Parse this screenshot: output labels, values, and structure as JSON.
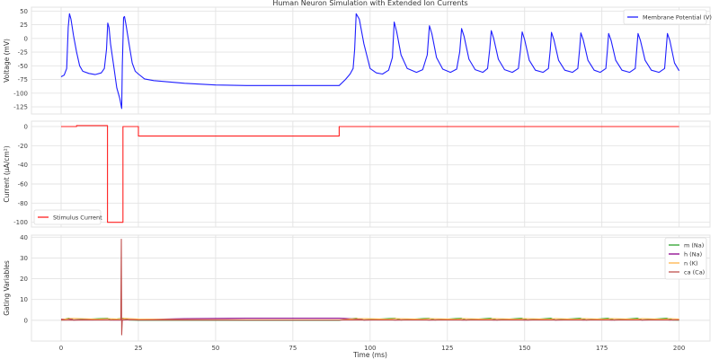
{
  "chart_data": {
    "title": "Human Neuron Simulation with Extended Ion Currents",
    "xlabel": "Time (ms)",
    "xlim": [
      -9.6,
      210
    ],
    "xticks": [
      0,
      25,
      50,
      75,
      100,
      125,
      150,
      175,
      200
    ],
    "grid": true,
    "panels": [
      {
        "type": "line",
        "ylabel": "Voltage (mV)",
        "ylim": [
          -138,
          57
        ],
        "yticks": [
          50,
          25,
          0,
          -25,
          -50,
          -75,
          -100,
          -125
        ],
        "legend_position": "upper-right",
        "series": [
          {
            "name": "Membrane Potential (V)",
            "color": "#1f1fff",
            "points": [
              [
                0,
                -70
              ],
              [
                1,
                -67
              ],
              [
                1.8,
                -55
              ],
              [
                2.3,
                20
              ],
              [
                2.7,
                45
              ],
              [
                3.2,
                35
              ],
              [
                4,
                5
              ],
              [
                5,
                -25
              ],
              [
                6,
                -50
              ],
              [
                7,
                -60
              ],
              [
                9,
                -64
              ],
              [
                11,
                -66
              ],
              [
                13,
                -63
              ],
              [
                14,
                -55
              ],
              [
                14.7,
                -20
              ],
              [
                15.1,
                28
              ],
              [
                15.5,
                20
              ],
              [
                16,
                -10
              ],
              [
                17,
                -50
              ],
              [
                18,
                -90
              ],
              [
                19,
                -110
              ],
              [
                19.6,
                -128
              ],
              [
                19.8,
                -50
              ],
              [
                20.2,
                38
              ],
              [
                20.5,
                40
              ],
              [
                21,
                25
              ],
              [
                22,
                -10
              ],
              [
                23,
                -45
              ],
              [
                24,
                -60
              ],
              [
                25,
                -65
              ],
              [
                27,
                -74
              ],
              [
                30,
                -77
              ],
              [
                40,
                -82
              ],
              [
                50,
                -85
              ],
              [
                60,
                -86
              ],
              [
                90,
                -86
              ],
              [
                92,
                -75
              ],
              [
                93.5,
                -65
              ],
              [
                94.5,
                -55
              ],
              [
                95,
                -20
              ],
              [
                95.5,
                45
              ],
              [
                96.5,
                35
              ],
              [
                98,
                -10
              ],
              [
                100,
                -55
              ],
              [
                102,
                -63
              ],
              [
                104,
                -65
              ],
              [
                106,
                -58
              ],
              [
                107.2,
                -35
              ],
              [
                107.8,
                30
              ],
              [
                108.6,
                12
              ],
              [
                110,
                -30
              ],
              [
                112,
                -55
              ],
              [
                115,
                -62
              ],
              [
                117,
                -57
              ],
              [
                118.5,
                -30
              ],
              [
                119.2,
                23
              ],
              [
                120,
                8
              ],
              [
                121.5,
                -35
              ],
              [
                123.5,
                -56
              ],
              [
                126,
                -62
              ],
              [
                128,
                -56
              ],
              [
                129,
                -25
              ],
              [
                129.6,
                18
              ],
              [
                130.4,
                4
              ],
              [
                132,
                -38
              ],
              [
                134,
                -57
              ],
              [
                136.5,
                -62
              ],
              [
                138,
                -55
              ],
              [
                138.7,
                -20
              ],
              [
                139.2,
                14
              ],
              [
                140,
                0
              ],
              [
                141.5,
                -38
              ],
              [
                143.5,
                -57
              ],
              [
                146,
                -62
              ],
              [
                148,
                -55
              ],
              [
                148.7,
                -20
              ],
              [
                149.2,
                12
              ],
              [
                150,
                -2
              ],
              [
                151.5,
                -40
              ],
              [
                153.5,
                -58
              ],
              [
                156,
                -62
              ],
              [
                157.7,
                -55
              ],
              [
                158.3,
                -20
              ],
              [
                158.7,
                11
              ],
              [
                159.5,
                -3
              ],
              [
                161,
                -40
              ],
              [
                163,
                -58
              ],
              [
                165.5,
                -62
              ],
              [
                167.2,
                -55
              ],
              [
                167.8,
                -20
              ],
              [
                168.2,
                10
              ],
              [
                169,
                -3
              ],
              [
                170.5,
                -40
              ],
              [
                172.5,
                -58
              ],
              [
                174.5,
                -62
              ],
              [
                176.3,
                -55
              ],
              [
                176.8,
                -20
              ],
              [
                177.2,
                9
              ],
              [
                178,
                -4
              ],
              [
                179.5,
                -40
              ],
              [
                181.5,
                -58
              ],
              [
                184,
                -62
              ],
              [
                185.8,
                -55
              ],
              [
                186.3,
                -20
              ],
              [
                186.7,
                9
              ],
              [
                187.5,
                -4
              ],
              [
                189,
                -40
              ],
              [
                191,
                -58
              ],
              [
                193.5,
                -62
              ],
              [
                195.3,
                -55
              ],
              [
                195.8,
                -20
              ],
              [
                196.2,
                9
              ],
              [
                197,
                -4
              ],
              [
                198.5,
                -45
              ],
              [
                200,
                -59
              ]
            ]
          }
        ]
      },
      {
        "type": "line",
        "ylabel": "Current (μA/cm²)",
        "ylim": [
          -105,
          5.6
        ],
        "yticks": [
          0,
          -20,
          -40,
          -60,
          -80,
          -100
        ],
        "legend_position": "lower-left",
        "series": [
          {
            "name": "Stimulus Current",
            "color": "#ff2020",
            "points": [
              [
                0,
                0
              ],
              [
                5,
                0
              ],
              [
                5,
                1
              ],
              [
                15,
                1
              ],
              [
                15,
                -100
              ],
              [
                20,
                -100
              ],
              [
                20,
                0
              ],
              [
                25,
                0
              ],
              [
                25,
                -10
              ],
              [
                90,
                -10
              ],
              [
                90,
                0
              ],
              [
                200,
                0
              ]
            ]
          }
        ]
      },
      {
        "type": "line",
        "ylabel": "Gating Variables",
        "ylim": [
          -10,
          41
        ],
        "yticks": [
          0,
          10,
          20,
          30,
          40
        ],
        "legend_position": "upper-right",
        "series": [
          {
            "name": "m (Na)",
            "color": "#2ca02c",
            "points": [
              [
                0,
                0.05
              ],
              [
                2.5,
                1
              ],
              [
                4,
                0.1
              ],
              [
                15,
                1
              ],
              [
                16,
                0.1
              ],
              [
                20,
                1
              ],
              [
                22,
                0.1
              ],
              [
                25,
                0.03
              ],
              [
                90,
                0.02
              ],
              [
                95.5,
                1
              ],
              [
                98,
                0.1
              ],
              [
                108,
                1
              ],
              [
                110,
                0.1
              ],
              [
                119,
                1
              ],
              [
                121,
                0.1
              ],
              [
                129.5,
                1
              ],
              [
                131,
                0.1
              ],
              [
                139,
                1
              ],
              [
                141,
                0.1
              ],
              [
                149,
                1
              ],
              [
                151,
                0.1
              ],
              [
                158.5,
                1
              ],
              [
                160,
                0.1
              ],
              [
                168,
                1
              ],
              [
                170,
                0.1
              ],
              [
                177,
                1
              ],
              [
                179,
                0.1
              ],
              [
                186.5,
                1
              ],
              [
                188,
                0.1
              ],
              [
                196,
                1
              ],
              [
                198,
                0.1
              ],
              [
                200,
                0.08
              ]
            ]
          },
          {
            "name": "h (Na)",
            "color": "#8b008b",
            "points": [
              [
                0,
                0.6
              ],
              [
                2.5,
                0.6
              ],
              [
                4,
                0.1
              ],
              [
                9,
                0.3
              ],
              [
                15,
                0.2
              ],
              [
                17,
                0.1
              ],
              [
                20,
                0.1
              ],
              [
                24,
                0.3
              ],
              [
                40,
                0.8
              ],
              [
                60,
                1
              ],
              [
                90,
                1
              ],
              [
                95.5,
                0.6
              ],
              [
                98,
                0.1
              ],
              [
                106,
                0.3
              ],
              [
                108,
                0.1
              ],
              [
                117,
                0.3
              ],
              [
                119,
                0.1
              ],
              [
                128,
                0.3
              ],
              [
                130,
                0.1
              ],
              [
                138,
                0.3
              ],
              [
                140,
                0.1
              ],
              [
                148,
                0.3
              ],
              [
                150,
                0.1
              ],
              [
                158,
                0.3
              ],
              [
                160,
                0.1
              ],
              [
                167,
                0.3
              ],
              [
                169,
                0.1
              ],
              [
                176,
                0.3
              ],
              [
                178,
                0.1
              ],
              [
                186,
                0.3
              ],
              [
                188,
                0.1
              ],
              [
                195,
                0.3
              ],
              [
                197,
                0.1
              ],
              [
                200,
                0.25
              ]
            ]
          },
          {
            "name": "n (K)",
            "color": "#ffb347",
            "points": [
              [
                0,
                0.3
              ],
              [
                3,
                0.9
              ],
              [
                6,
                0.8
              ],
              [
                12,
                0.5
              ],
              [
                15,
                0.8
              ],
              [
                18,
                0.6
              ],
              [
                20.5,
                0.9
              ],
              [
                25,
                0.6
              ],
              [
                40,
                0.3
              ],
              [
                90,
                0.2
              ],
              [
                95.5,
                0.8
              ],
              [
                100,
                0.7
              ],
              [
                106,
                0.5
              ],
              [
                108,
                0.8
              ],
              [
                117,
                0.5
              ],
              [
                119,
                0.8
              ],
              [
                128,
                0.5
              ],
              [
                130,
                0.8
              ],
              [
                138,
                0.5
              ],
              [
                140,
                0.8
              ],
              [
                148,
                0.5
              ],
              [
                150,
                0.8
              ],
              [
                158,
                0.5
              ],
              [
                160,
                0.8
              ],
              [
                167,
                0.5
              ],
              [
                169,
                0.8
              ],
              [
                176,
                0.5
              ],
              [
                178,
                0.8
              ],
              [
                186,
                0.5
              ],
              [
                188,
                0.8
              ],
              [
                195,
                0.5
              ],
              [
                197,
                0.8
              ],
              [
                200,
                0.6
              ]
            ]
          },
          {
            "name": "ca (Ca)",
            "color": "#c0504d",
            "points": [
              [
                0,
                0.05
              ],
              [
                19.3,
                0.1
              ],
              [
                19.5,
                39
              ],
              [
                19.6,
                -7
              ],
              [
                19.8,
                0.3
              ],
              [
                25,
                0.1
              ],
              [
                200,
                0.1
              ]
            ]
          }
        ]
      }
    ]
  }
}
